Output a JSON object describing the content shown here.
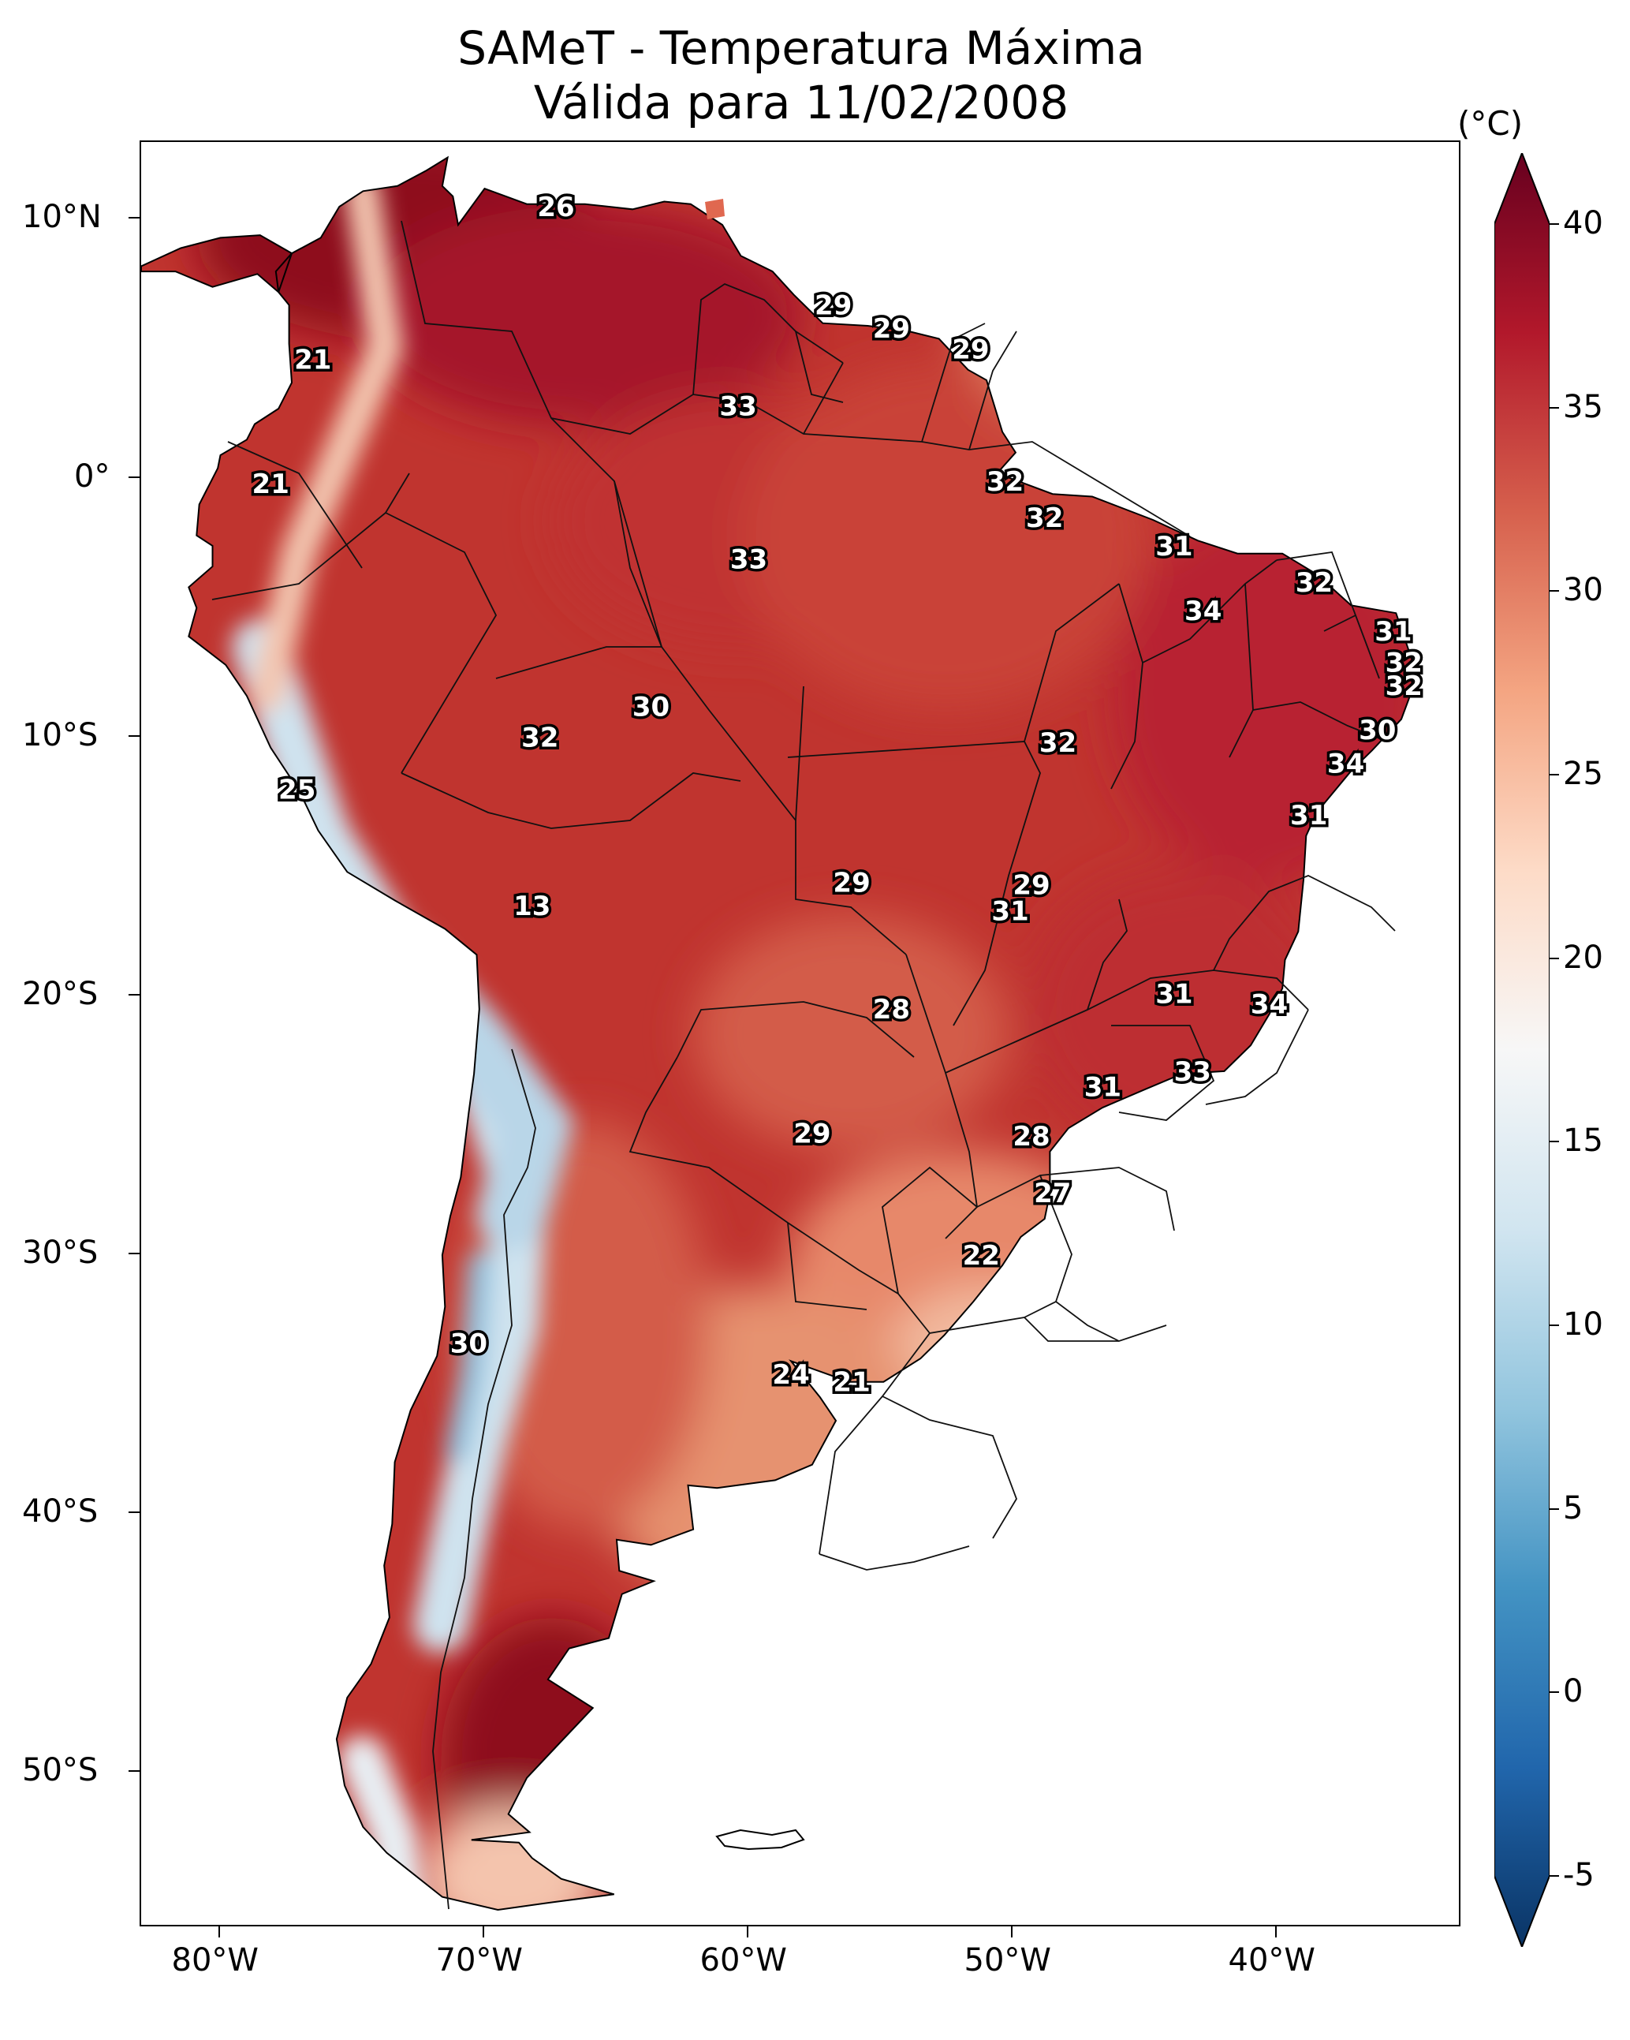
{
  "title": {
    "line1": "SAMeT - Temperatura Máxima",
    "line2": "Válida para 11/02/2008"
  },
  "colorbar": {
    "unit": "(°C)",
    "ticks": [
      "40",
      "35",
      "30",
      "25",
      "20",
      "15",
      "10",
      "5",
      "0",
      "-5"
    ],
    "range": [
      -5,
      40
    ],
    "colors": [
      "#0a3465",
      "#2166ac",
      "#4393c3",
      "#92c5de",
      "#d1e5f0",
      "#f7f7f7",
      "#fddbc7",
      "#f4a582",
      "#d6604d",
      "#b2182b",
      "#67001f"
    ]
  },
  "axes": {
    "lat_labels": [
      "10°N",
      "0°",
      "10°S",
      "20°S",
      "30°S",
      "40°S",
      "50°S"
    ],
    "lon_labels": [
      "80°W",
      "70°W",
      "60°W",
      "50°W",
      "40°W"
    ]
  },
  "map_data": {
    "extent": {
      "lon": [
        -83,
        -33
      ],
      "lat": [
        -56,
        13
      ]
    },
    "station_values": [
      {
        "lon": -67.3,
        "lat": 10.5,
        "value": "26"
      },
      {
        "lon": -56.8,
        "lat": 6.7,
        "value": "29"
      },
      {
        "lon": -54.6,
        "lat": 5.8,
        "value": "29"
      },
      {
        "lon": -51.6,
        "lat": 5.0,
        "value": "29"
      },
      {
        "lon": -76.5,
        "lat": 4.6,
        "value": "21"
      },
      {
        "lon": -60.4,
        "lat": 2.8,
        "value": "33"
      },
      {
        "lon": -78.1,
        "lat": -0.2,
        "value": "21"
      },
      {
        "lon": -50.3,
        "lat": -0.1,
        "value": "32"
      },
      {
        "lon": -48.8,
        "lat": -1.5,
        "value": "32"
      },
      {
        "lon": -43.9,
        "lat": -2.6,
        "value": "31"
      },
      {
        "lon": -60.0,
        "lat": -3.1,
        "value": "33"
      },
      {
        "lon": -38.6,
        "lat": -4.0,
        "value": "32"
      },
      {
        "lon": -42.8,
        "lat": -5.1,
        "value": "34"
      },
      {
        "lon": -35.6,
        "lat": -5.9,
        "value": "31"
      },
      {
        "lon": -35.2,
        "lat": -7.1,
        "value": "32"
      },
      {
        "lon": -35.2,
        "lat": -8.0,
        "value": "32"
      },
      {
        "lon": -63.7,
        "lat": -8.8,
        "value": "30"
      },
      {
        "lon": -36.2,
        "lat": -9.7,
        "value": "30"
      },
      {
        "lon": -67.9,
        "lat": -10.0,
        "value": "32"
      },
      {
        "lon": -48.3,
        "lat": -10.2,
        "value": "32"
      },
      {
        "lon": -37.4,
        "lat": -11.0,
        "value": "34"
      },
      {
        "lon": -77.1,
        "lat": -12.0,
        "value": "25"
      },
      {
        "lon": -38.8,
        "lat": -13.0,
        "value": "31"
      },
      {
        "lon": -56.1,
        "lat": -15.6,
        "value": "29"
      },
      {
        "lon": -49.3,
        "lat": -15.7,
        "value": "29"
      },
      {
        "lon": -50.1,
        "lat": -16.7,
        "value": "31"
      },
      {
        "lon": -68.2,
        "lat": -16.5,
        "value": "13"
      },
      {
        "lon": -43.9,
        "lat": -19.9,
        "value": "31"
      },
      {
        "lon": -54.6,
        "lat": -20.5,
        "value": "28"
      },
      {
        "lon": -40.3,
        "lat": -20.3,
        "value": "34"
      },
      {
        "lon": -43.2,
        "lat": -22.9,
        "value": "33"
      },
      {
        "lon": -46.6,
        "lat": -23.5,
        "value": "31"
      },
      {
        "lon": -57.6,
        "lat": -25.3,
        "value": "29"
      },
      {
        "lon": -49.3,
        "lat": -25.4,
        "value": "28"
      },
      {
        "lon": -48.5,
        "lat": -27.6,
        "value": "27"
      },
      {
        "lon": -51.2,
        "lat": -30.0,
        "value": "22"
      },
      {
        "lon": -70.6,
        "lat": -33.4,
        "value": "30"
      },
      {
        "lon": -58.4,
        "lat": -34.6,
        "value": "24"
      },
      {
        "lon": -56.1,
        "lat": -34.9,
        "value": "21"
      }
    ]
  }
}
